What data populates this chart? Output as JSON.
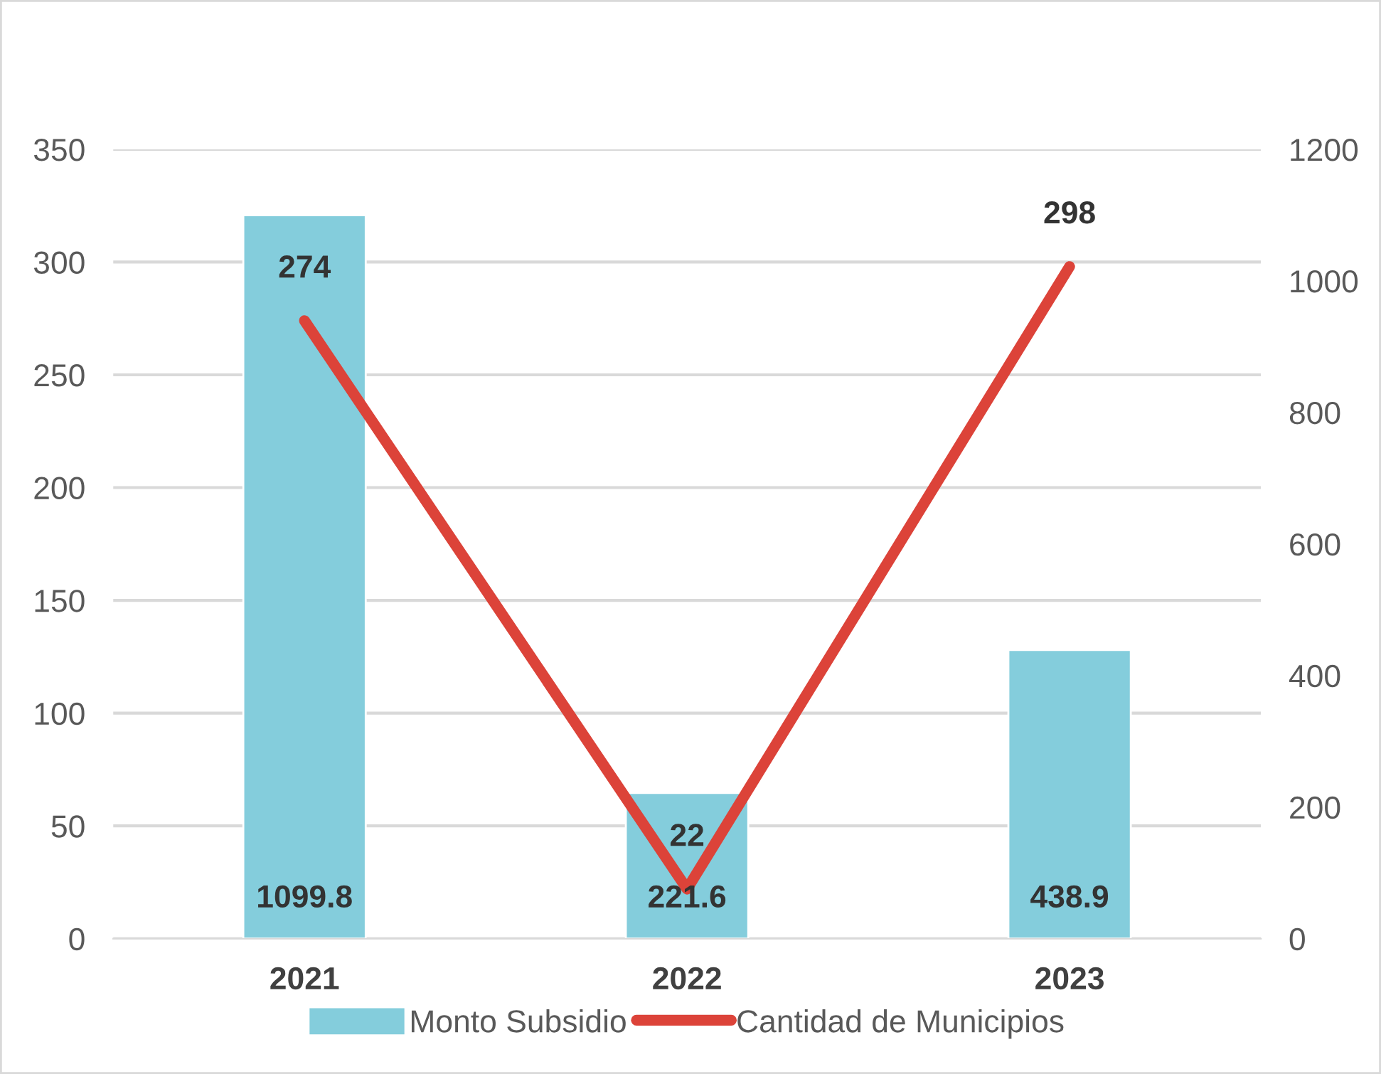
{
  "chart_data": {
    "type": "bar",
    "categories": [
      "2021",
      "2022",
      "2023"
    ],
    "series": [
      {
        "name": "Monto Subsidio",
        "axis": "y2",
        "color": "#84cddc",
        "values": [
          1099.8,
          221.6,
          438.9
        ]
      },
      {
        "name": "Cantidad de Municipios",
        "type": "line",
        "color": "#dc4339",
        "values": [
          274,
          22,
          298
        ]
      }
    ],
    "ylim": [
      0,
      350
    ],
    "yticks": [
      0,
      50,
      100,
      150,
      200,
      250,
      300,
      350
    ],
    "y2lim": [
      0,
      1200
    ],
    "y2ticks": [
      0,
      200,
      400,
      600,
      800,
      1000,
      1200
    ],
    "grid": "y",
    "legend": "bottom",
    "data_labels": true
  }
}
